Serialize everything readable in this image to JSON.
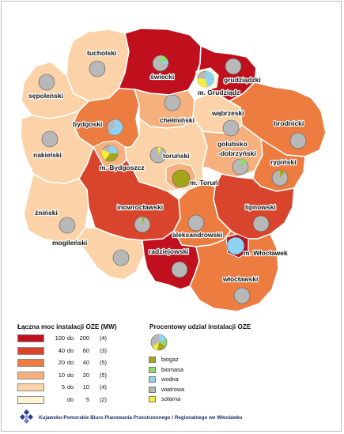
{
  "regions": {
    "tucholski": "tucholski",
    "swiecki": "świecki",
    "grudziadzki": "grudziądzki",
    "m_grudziadz": "m. Grudziądz",
    "sepolenski": "sępoleński",
    "chelminski": "chełmiński",
    "wabrzeski": "wąbrzeski",
    "brodnicki": "brodnicki",
    "bydgoski": "bydgoski",
    "nakielski": "nakielski",
    "m_bydgoszcz": "m. Bydgoszcz",
    "torunski": "toruński",
    "golubsko_line1": "golubsko",
    "golubsko_line2": "-dobrzyński",
    "rypinski": "rypiński",
    "m_torun": "m. Toruń",
    "zninski": "żniński",
    "inowroclawski": "inowrocławski",
    "lipnowski": "lipnowski",
    "aleksandrowski": "aleksandrowski",
    "mogilenski": "mogileński",
    "radziejowski": "radziejowski",
    "m_wloclawek": "m. Włocławek",
    "wloclawski": "włocławski"
  },
  "legend_power": {
    "title": "Łączna moc instalacji OZE (MW)",
    "classes": [
      {
        "from": "100",
        "sep": "do",
        "to": "200",
        "count": "(4)",
        "color": "#c00f1d"
      },
      {
        "from": "40",
        "sep": "do",
        "to": "60",
        "count": "(3)",
        "color": "#d9452c"
      },
      {
        "from": "20",
        "sep": "do",
        "to": "40",
        "count": "(5)",
        "color": "#ec7c3f"
      },
      {
        "from": "10",
        "sep": "do",
        "to": "20",
        "count": "(5)",
        "color": "#f6b07e"
      },
      {
        "from": "5",
        "sep": "do",
        "to": "10",
        "count": "(4)",
        "color": "#fcd3a8"
      },
      {
        "from": "",
        "sep": "do",
        "to": "5",
        "count": "(2)",
        "color": "#fff4d4"
      }
    ]
  },
  "legend_share": {
    "title": "Procentowy udział instalacji OZE",
    "items": [
      {
        "label": "biogaz",
        "color": "#a5a51a"
      },
      {
        "label": "biomasa",
        "color": "#8fdc6a"
      },
      {
        "label": "wodna",
        "color": "#8fd3f2"
      },
      {
        "label": "wiatrowa",
        "color": "#b8b8b8"
      },
      {
        "label": "solarna",
        "color": "#f5ef3a"
      }
    ]
  },
  "footer": {
    "institution": "Kujawsko-Pomorskie Biuro Planowania Przestrzennego i Regionalnego we Włocławku"
  }
}
